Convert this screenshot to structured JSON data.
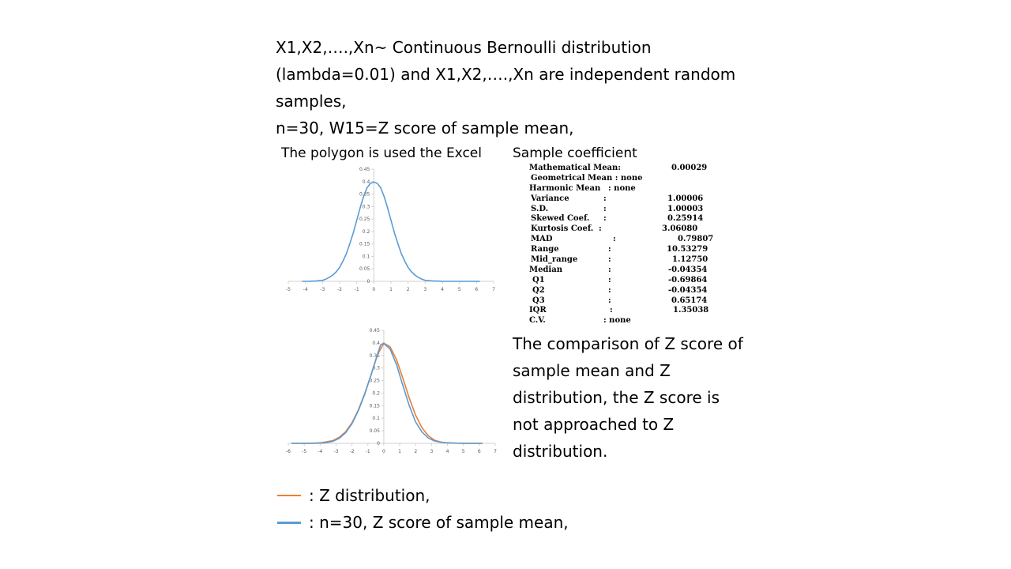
{
  "header": {
    "lines": [
      "X1,X2,….,Xn~ Continuous Bernoulli distribution",
      "(lambda=0.01) and X1,X2,….,Xn are independent random",
      "samples,",
      "n=30, W15=Z score of sample mean,"
    ]
  },
  "polygon_caption": "The polygon is used the Excel",
  "stats": {
    "title": "Sample coefficient",
    "rows": [
      {
        "label": "Mathematical Mean:",
        "sep": "",
        "value": "0.00029"
      },
      {
        "label": "Geometrical Mean : none",
        "sep": "",
        "value": ""
      },
      {
        "label": "Harmonic Mean",
        "sep": ": none",
        "value": ""
      },
      {
        "label": "Variance",
        "sep": ":",
        "value": "1.00006"
      },
      {
        "label": "S.D.",
        "sep": ":",
        "value": "1.00003"
      },
      {
        "label": "Skewed Coef.",
        "sep": ":",
        "value": "0.25914"
      },
      {
        "label": "Kurtosis Coef.",
        "sep": ":",
        "value": "3.06080"
      },
      {
        "label": "MAD",
        "sep": ":",
        "value": "0.79807"
      },
      {
        "label": "Range",
        "sep": ":",
        "value": "10.53279"
      },
      {
        "label": "Mid_range",
        "sep": ":",
        "value": "1.12750"
      },
      {
        "label": "Median",
        "sep": ":",
        "value": "-0.04354"
      },
      {
        "label": "Q1",
        "sep": ":",
        "value": "-0.69864"
      },
      {
        "label": "Q2",
        "sep": ":",
        "value": "-0.04354"
      },
      {
        "label": "Q3",
        "sep": ":",
        "value": "0.65174"
      },
      {
        "label": "IQR",
        "sep": ":",
        "value": "1.35038"
      },
      {
        "label": "C.V.",
        "sep": ": none",
        "value": ""
      }
    ]
  },
  "conclusion_lines": [
    "The comparison of Z score of",
    "sample mean and Z",
    "distribution, the Z score is",
    "not approached to Z",
    "distribution."
  ],
  "legend": [
    {
      "color": "#ED7D31",
      "label": ": Z distribution,"
    },
    {
      "color": "#5B9BD5",
      "label": ":   n=30, Z score of sample mean,"
    }
  ],
  "chart_data": [
    {
      "type": "line",
      "xlim": [
        -5,
        7
      ],
      "ylim": [
        0,
        0.45
      ],
      "x_ticks": [
        "-5",
        "-4",
        "-3",
        "-2",
        "-1",
        "0",
        "1",
        "2",
        "3",
        "4",
        "5",
        "6",
        "7"
      ],
      "y_ticks": [
        "0",
        "0.05",
        "0.1",
        "0.15",
        "0.2",
        "0.25",
        "0.3",
        "0.35",
        "0.4",
        "0.45"
      ],
      "grid": false,
      "series": [
        {
          "color": "#5B9BD5",
          "x": [
            -4.2,
            -4,
            -3.8,
            -3.6,
            -3.4,
            -3.2,
            -3,
            -2.8,
            -2.6,
            -2.4,
            -2.2,
            -2,
            -1.8,
            -1.6,
            -1.4,
            -1.2,
            -1,
            -0.8,
            -0.6,
            -0.4,
            -0.2,
            0,
            0.2,
            0.4,
            0.6,
            0.8,
            1,
            1.2,
            1.4,
            1.6,
            1.8,
            2,
            2.2,
            2.4,
            2.6,
            2.8,
            3,
            3.2,
            3.4,
            3.6,
            3.8,
            4,
            4.2,
            4.4,
            4.6,
            4.8,
            5,
            5.2,
            5.4,
            5.6,
            5.8,
            6,
            6.2
          ],
          "y": [
            0,
            0,
            0,
            0.001,
            0.001,
            0.003,
            0.004,
            0.009,
            0.016,
            0.025,
            0.038,
            0.056,
            0.082,
            0.112,
            0.152,
            0.195,
            0.245,
            0.295,
            0.34,
            0.375,
            0.393,
            0.398,
            0.393,
            0.375,
            0.34,
            0.295,
            0.245,
            0.195,
            0.152,
            0.112,
            0.082,
            0.056,
            0.038,
            0.025,
            0.016,
            0.009,
            0.004,
            0.003,
            0.002,
            0.001,
            0.001,
            0,
            0,
            0,
            0,
            0,
            0,
            0,
            0,
            0,
            0,
            0,
            0
          ]
        }
      ]
    },
    {
      "type": "line",
      "xlim": [
        -6,
        7
      ],
      "ylim": [
        0,
        0.45
      ],
      "x_ticks": [
        "-6",
        "-5",
        "-4",
        "-3",
        "-2",
        "-1",
        "0",
        "1",
        "2",
        "3",
        "4",
        "5",
        "6",
        "7"
      ],
      "y_ticks": [
        "0",
        "0.05",
        "0.1",
        "0.15",
        "0.2",
        "0.25",
        "0.3",
        "0.35",
        "0.4",
        "0.45"
      ],
      "grid": false,
      "series": [
        {
          "color": "#ED7D31",
          "x": [
            -5.8,
            -5,
            -4.4,
            -4,
            -3.6,
            -3.2,
            -2.8,
            -2.4,
            -2,
            -1.6,
            -1.2,
            -0.8,
            -0.4,
            0,
            0.4,
            0.8,
            1.2,
            1.6,
            2,
            2.4,
            2.8,
            3.2,
            3.6,
            4,
            4.4,
            5,
            5.8,
            6.2
          ],
          "y": [
            0,
            0,
            0.001,
            0.002,
            0.006,
            0.011,
            0.024,
            0.046,
            0.082,
            0.133,
            0.198,
            0.272,
            0.352,
            0.399,
            0.384,
            0.333,
            0.259,
            0.18,
            0.112,
            0.062,
            0.03,
            0.012,
            0.005,
            0.002,
            0.001,
            0,
            0,
            0
          ]
        },
        {
          "color": "#5B9BD5",
          "x": [
            -5.8,
            -5,
            -4.4,
            -4,
            -3.6,
            -3.2,
            -2.8,
            -2.4,
            -2,
            -1.6,
            -1.2,
            -0.8,
            -0.4,
            -0.2,
            0,
            0.4,
            0.8,
            1.2,
            1.6,
            2,
            2.4,
            2.8,
            3.2,
            3.6,
            4,
            4.4,
            5,
            5.8,
            6.2
          ],
          "y": [
            0,
            0,
            0,
            0.001,
            0.003,
            0.008,
            0.02,
            0.042,
            0.078,
            0.13,
            0.195,
            0.273,
            0.354,
            0.392,
            0.398,
            0.375,
            0.313,
            0.23,
            0.15,
            0.085,
            0.045,
            0.021,
            0.009,
            0.004,
            0.002,
            0.001,
            0,
            0,
            0
          ]
        }
      ]
    }
  ]
}
